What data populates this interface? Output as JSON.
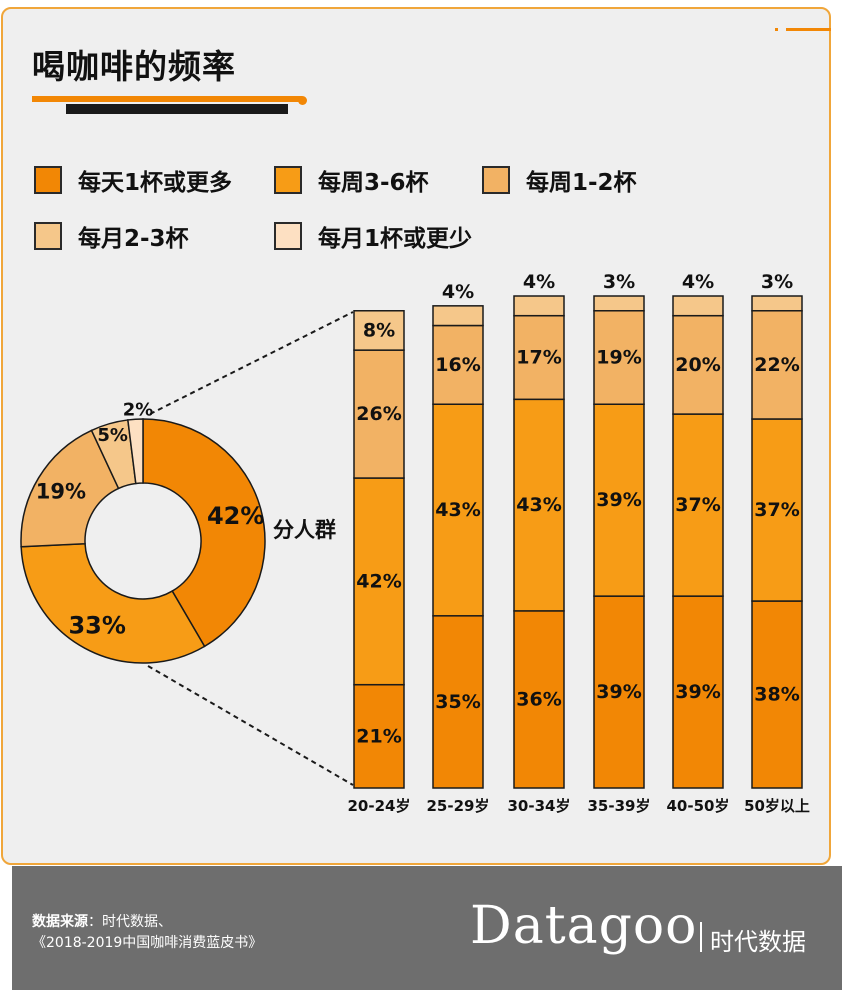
{
  "header": {
    "title": "喝咖啡的频率"
  },
  "legend": [
    {
      "label": "每天1杯或更多",
      "color": "#f28705"
    },
    {
      "label": "每周3-6杯",
      "color": "#f79c16"
    },
    {
      "label": "每周1-2杯",
      "color": "#f2b264"
    },
    {
      "label": "每月2-3杯",
      "color": "#f5c78a"
    },
    {
      "label": "每月1杯或更少",
      "color": "#fde0c2"
    }
  ],
  "chart_data": [
    {
      "type": "pie",
      "variant": "donut",
      "labels": [
        "每天1杯或更多",
        "每周3-6杯",
        "每周1-2杯",
        "每月2-3杯",
        "每月1杯或更少"
      ],
      "values": [
        42,
        33,
        19,
        5,
        2
      ],
      "value_labels": [
        "42%",
        "33%",
        "19%",
        "5%",
        "2%"
      ],
      "colors": [
        "#f28705",
        "#f79c16",
        "#f2b264",
        "#f5c78a",
        "#fde0c2"
      ]
    },
    {
      "type": "bar",
      "stacked": true,
      "annotation": "分人群",
      "categories": [
        "20-24岁",
        "25-29岁",
        "30-34岁",
        "35-39岁",
        "40-50岁",
        "50岁以上"
      ],
      "series": [
        {
          "name": "每天1杯或更多",
          "values": [
            21,
            35,
            36,
            39,
            39,
            38
          ],
          "color": "#f28705"
        },
        {
          "name": "每周3-6杯",
          "values": [
            42,
            43,
            43,
            39,
            37,
            37
          ],
          "color": "#f79c16"
        },
        {
          "name": "每周1-2杯",
          "values": [
            26,
            16,
            17,
            19,
            20,
            22
          ],
          "color": "#f2b264"
        },
        {
          "name": "每月2-3杯",
          "values": [
            8,
            4,
            4,
            3,
            4,
            3
          ],
          "color": "#f5c78a"
        }
      ],
      "ylim": [
        0,
        100
      ]
    }
  ],
  "footer": {
    "source_label": "数据来源",
    "source_text": "：时代数据、",
    "source_line2": "《2018-2019中国咖啡消费蓝皮书》",
    "logo_text": "Datagoo",
    "logo_cn": "时代数据"
  }
}
